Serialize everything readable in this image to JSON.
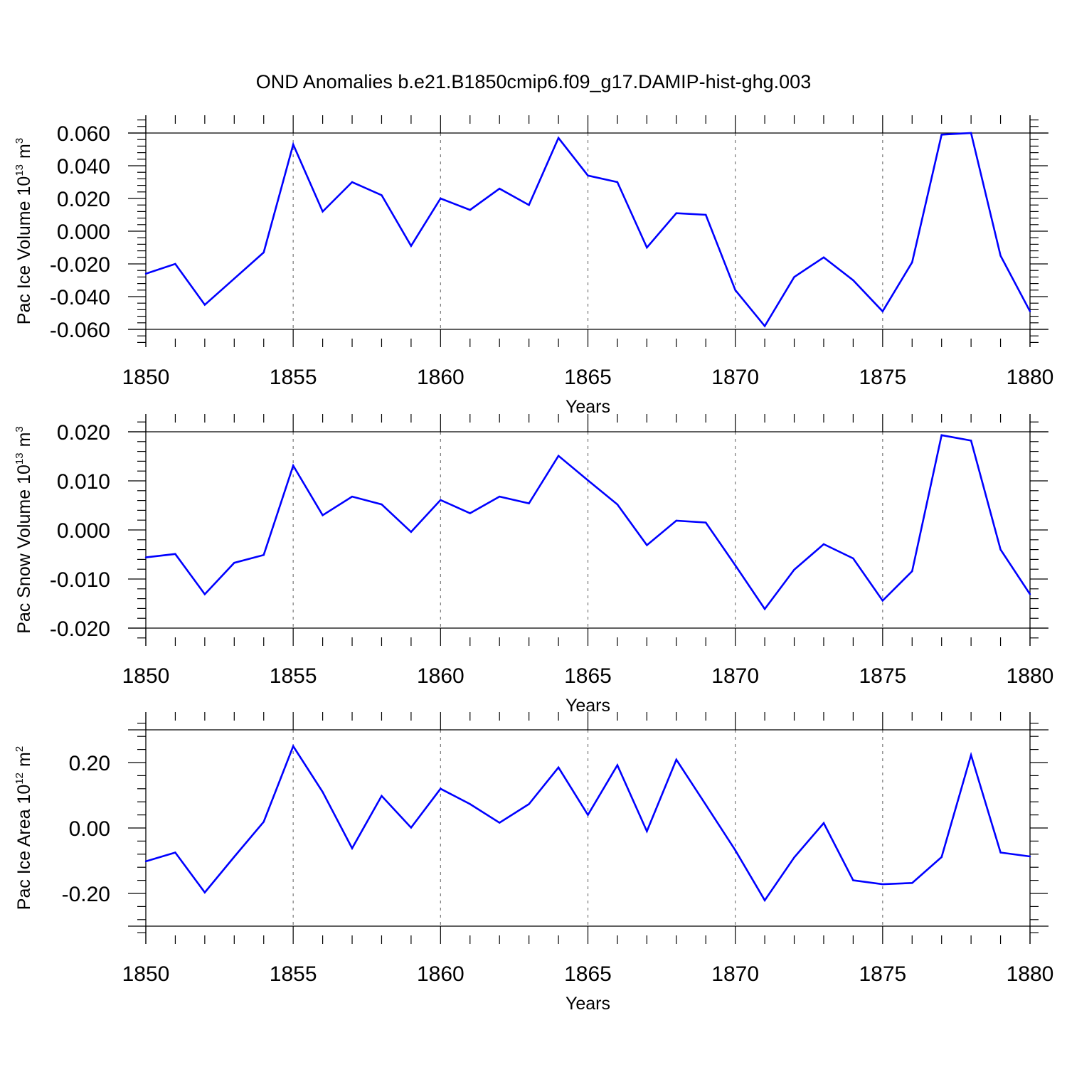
{
  "title": "OND Anomalies b.e21.B1850cmip6.f09_g17.DAMIP-hist-ghg.003",
  "colors": {
    "series": "#0000ff",
    "axes": "#000000",
    "grid": "#777777"
  },
  "chart_data": [
    {
      "type": "line",
      "ylabel": "Pac Ice Volume",
      "yunit_base": "10",
      "yunit_exp": "13",
      "yunit_unit": "m",
      "yunit_unit_exp": "3",
      "xlabel": "Years",
      "xlim": [
        1850,
        1880
      ],
      "ylim": [
        -0.06,
        0.06
      ],
      "xticks": [
        "1850",
        "1855",
        "1860",
        "1865",
        "1870",
        "1875",
        "1880"
      ],
      "yticks": [
        "-0.060",
        "-0.040",
        "-0.020",
        "0.000",
        "0.020",
        "0.040",
        "0.060"
      ],
      "x": [
        1850,
        1851,
        1852,
        1853,
        1854,
        1855,
        1856,
        1857,
        1858,
        1859,
        1860,
        1861,
        1862,
        1863,
        1864,
        1865,
        1866,
        1867,
        1868,
        1869,
        1870,
        1871,
        1872,
        1873,
        1874,
        1875,
        1876,
        1877,
        1878,
        1879,
        1880
      ],
      "values": [
        -0.026,
        -0.02,
        -0.045,
        -0.029,
        -0.013,
        0.053,
        0.012,
        0.03,
        0.022,
        -0.009,
        0.02,
        0.013,
        0.026,
        0.016,
        0.057,
        0.034,
        0.03,
        -0.01,
        0.011,
        0.01,
        -0.036,
        -0.058,
        -0.028,
        -0.016,
        -0.03,
        -0.049,
        -0.019,
        0.059,
        0.06,
        -0.015,
        -0.049
      ]
    },
    {
      "type": "line",
      "ylabel": "Pac Snow Volume",
      "yunit_base": "10",
      "yunit_exp": "13",
      "yunit_unit": "m",
      "yunit_unit_exp": "3",
      "xlabel": "Years",
      "xlim": [
        1850,
        1880
      ],
      "ylim": [
        -0.02,
        0.02
      ],
      "xticks": [
        "1850",
        "1855",
        "1860",
        "1865",
        "1870",
        "1875",
        "1880"
      ],
      "yticks": [
        "-0.020",
        "-0.010",
        "0.000",
        "0.010",
        "0.020"
      ],
      "x": [
        1850,
        1851,
        1852,
        1853,
        1854,
        1855,
        1856,
        1857,
        1858,
        1859,
        1860,
        1861,
        1862,
        1863,
        1864,
        1865,
        1866,
        1867,
        1868,
        1869,
        1870,
        1871,
        1872,
        1873,
        1874,
        1875,
        1876,
        1877,
        1878,
        1879,
        1880
      ],
      "values": [
        -0.0056,
        -0.0049,
        -0.0131,
        -0.0067,
        -0.0051,
        0.0131,
        0.003,
        0.0068,
        0.0052,
        -0.0004,
        0.0061,
        0.0034,
        0.0068,
        0.0054,
        0.0151,
        0.0101,
        0.0052,
        -0.0031,
        0.0019,
        0.0015,
        -0.0072,
        -0.0161,
        -0.0081,
        -0.0029,
        -0.0058,
        -0.0144,
        -0.0084,
        0.0193,
        0.0182,
        -0.004,
        -0.0131
      ]
    },
    {
      "type": "line",
      "ylabel": "Pac Ice Area",
      "yunit_base": "10",
      "yunit_exp": "12",
      "yunit_unit": "m",
      "yunit_unit_exp": "2",
      "xlabel": "Years",
      "xlim": [
        1850,
        1880
      ],
      "ylim": [
        -0.3,
        0.3
      ],
      "xticks": [
        "1850",
        "1855",
        "1860",
        "1865",
        "1870",
        "1875",
        "1880"
      ],
      "yticks": [
        "-0.20",
        "0.00",
        "0.20"
      ],
      "x": [
        1850,
        1851,
        1852,
        1853,
        1854,
        1855,
        1856,
        1857,
        1858,
        1859,
        1860,
        1861,
        1862,
        1863,
        1864,
        1865,
        1866,
        1867,
        1868,
        1869,
        1870,
        1871,
        1872,
        1873,
        1874,
        1875,
        1876,
        1877,
        1878,
        1879,
        1880
      ],
      "values": [
        -0.102,
        -0.075,
        -0.197,
        -0.088,
        0.019,
        0.25,
        0.11,
        -0.062,
        0.098,
        0.001,
        0.12,
        0.073,
        0.016,
        0.073,
        0.185,
        0.04,
        0.192,
        -0.01,
        0.209,
        0.071,
        -0.068,
        -0.221,
        -0.09,
        0.015,
        -0.16,
        -0.172,
        -0.168,
        -0.089,
        0.223,
        -0.075,
        -0.087
      ]
    }
  ]
}
